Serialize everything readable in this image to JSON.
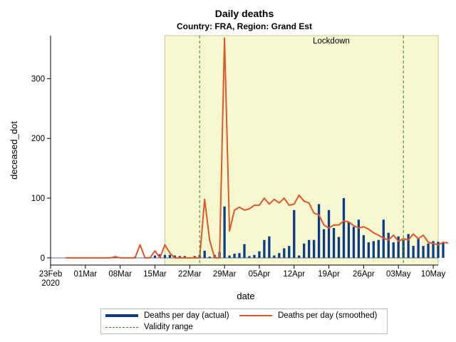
{
  "chart_data": {
    "type": "bar",
    "title": "Daily deaths",
    "subtitle": "Country: FRA, Region: Grand Est",
    "xlabel": "date",
    "ylabel": "deceased_dot",
    "ylim": [
      -12,
      372
    ],
    "yticks": [
      0,
      100,
      200,
      300
    ],
    "x_range_days": [
      0,
      78
    ],
    "xticks": [
      {
        "day": 0,
        "label": "23Feb",
        "label2": "2020"
      },
      {
        "day": 7,
        "label": "01Mar"
      },
      {
        "day": 14,
        "label": "08Mar"
      },
      {
        "day": 21,
        "label": "15Mar"
      },
      {
        "day": 28,
        "label": "22Mar"
      },
      {
        "day": 35,
        "label": "29Mar"
      },
      {
        "day": 42,
        "label": "05Apr"
      },
      {
        "day": 49,
        "label": "12Apr"
      },
      {
        "day": 56,
        "label": "19Apr"
      },
      {
        "day": 63,
        "label": "26Apr"
      },
      {
        "day": 70,
        "label": "03May"
      },
      {
        "day": 77,
        "label": "10May"
      }
    ],
    "lockdown": {
      "label": "Lockdown",
      "start_day": 23,
      "end_day": 78
    },
    "validity_range": {
      "start_day": 30,
      "end_day": 71
    },
    "start_day_offset": 3,
    "series": [
      {
        "name": "Deaths per day (actual)",
        "type": "bar",
        "color": "#0b3c8c",
        "values": [
          0,
          0,
          0,
          0,
          0,
          0,
          0,
          0,
          0,
          0,
          3,
          0,
          0,
          0,
          2,
          0,
          0,
          0,
          4,
          6,
          5,
          5,
          4,
          3,
          3,
          0,
          3,
          5,
          12,
          2,
          5,
          10,
          86,
          4,
          7,
          8,
          23,
          3,
          5,
          11,
          30,
          36,
          4,
          8,
          16,
          20,
          80,
          4,
          24,
          30,
          30,
          90,
          48,
          80,
          50,
          35,
          100,
          60,
          52,
          64,
          38,
          26,
          28,
          30,
          64,
          42,
          26,
          36,
          30,
          40,
          20,
          32,
          20,
          24,
          28,
          27,
          26
        ]
      },
      {
        "name": "Deaths per day (smoothed)",
        "type": "line",
        "color": "#e0582a",
        "values": [
          0,
          0,
          0,
          0,
          0,
          0,
          0,
          0,
          0,
          0,
          2,
          0,
          0,
          0,
          0,
          22,
          0,
          0,
          12,
          0,
          22,
          8,
          0,
          0,
          0,
          0,
          0,
          0,
          98,
          30,
          0,
          0,
          368,
          45,
          80,
          85,
          80,
          82,
          88,
          88,
          100,
          90,
          98,
          92,
          100,
          88,
          90,
          105,
          95,
          92,
          75,
          72,
          55,
          50,
          55,
          55,
          62,
          60,
          54,
          50,
          52,
          48,
          42,
          38,
          33,
          30,
          38,
          28,
          32,
          30,
          40,
          32,
          38,
          26,
          24,
          22,
          26,
          25
        ]
      }
    ],
    "legend": [
      {
        "label": "Deaths per day (actual)",
        "style": "thick-line",
        "color": "#0b3c8c"
      },
      {
        "label": "Deaths per day (smoothed)",
        "style": "line",
        "color": "#e0582a"
      },
      {
        "label": "Validity range",
        "style": "dashed",
        "color": "#2e8b2e"
      }
    ]
  }
}
